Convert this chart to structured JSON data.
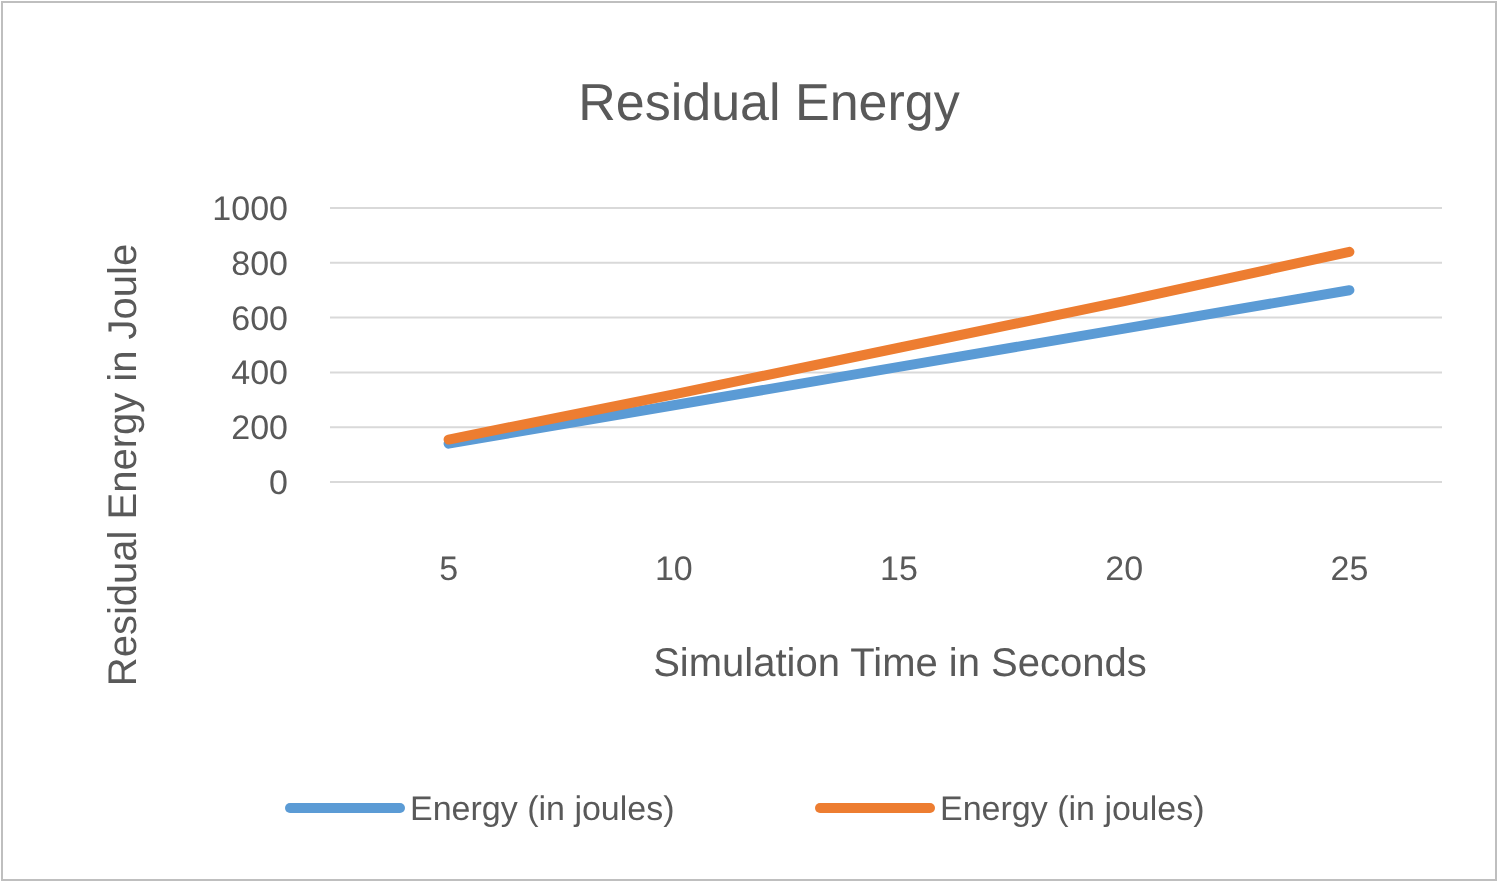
{
  "chart_data": {
    "type": "line",
    "title": "Residual Energy",
    "xlabel": "Simulation Time in Seconds",
    "ylabel": "Residual Energy in Joule",
    "categories": [
      "5",
      "10",
      "15",
      "20",
      "25"
    ],
    "series": [
      {
        "name": "Energy (in joules)",
        "color": "#5b9bd5",
        "values": [
          140,
          280,
          420,
          560,
          700
        ]
      },
      {
        "name": "Energy (in joules)",
        "color": "#ed7d31",
        "values": [
          155,
          320,
          490,
          660,
          840
        ]
      }
    ],
    "ylim": [
      0,
      1000
    ],
    "yticks": [
      0,
      200,
      400,
      600,
      800,
      1000
    ],
    "grid": "y",
    "legend": "bottom",
    "marker": "none",
    "line_style": "solid"
  }
}
